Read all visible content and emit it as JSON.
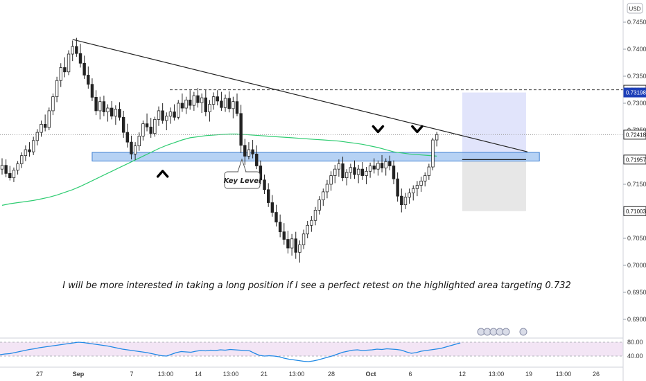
{
  "currency": "USD",
  "annotation_text": "I will be more interested in taking a long position if I see a perfect retest on the highlighted area targeting 0.732",
  "key_level_label": "Key Level",
  "colors": {
    "candle": "#222222",
    "ma": "#2ecc71",
    "zone_fill": "#9ec3f0",
    "zone_stroke": "#3d7fd1",
    "trendline": "#222222",
    "target_zone": "#dfe3fb",
    "stop_zone": "#e6e6e6",
    "rsi_line": "#1e88e5",
    "rsi_band": "#f3e5f5",
    "price_tag_blue": "#1d3fb8"
  },
  "chart_data": {
    "type": "candlestick",
    "title": "",
    "price_axis": {
      "ticks": [
        "0.74500",
        "0.74000",
        "0.73500",
        "0.73000",
        "0.72500",
        "0.72000",
        "0.71500",
        "0.71000",
        "0.70500",
        "0.70000",
        "0.69500",
        "0.69000"
      ],
      "range": [
        0.6875,
        0.7475
      ],
      "price_tags": [
        {
          "label": "0.73249",
          "value": 0.73249,
          "style": "outline"
        },
        {
          "label": "0.73198",
          "value": 0.73198,
          "style": "blue"
        },
        {
          "label": "0.72418",
          "value": 0.72418,
          "style": "outline"
        },
        {
          "label": "0.71957",
          "value": 0.71957,
          "style": "outline"
        },
        {
          "label": "0.71003",
          "value": 0.71003,
          "style": "outline"
        }
      ]
    },
    "time_axis": {
      "labels": [
        "27",
        "Sep",
        "7",
        "13:00",
        "14",
        "13:00",
        "21",
        "13:00",
        "28",
        "Oct",
        "6",
        "12",
        "13:00",
        "19",
        "13:00",
        "26"
      ]
    },
    "candles_ohlc": [
      [
        0.7178,
        0.7198,
        0.7168,
        0.7185
      ],
      [
        0.7185,
        0.7196,
        0.7163,
        0.717
      ],
      [
        0.717,
        0.7184,
        0.7157,
        0.7162
      ],
      [
        0.7162,
        0.7181,
        0.7154,
        0.7176
      ],
      [
        0.7176,
        0.7193,
        0.7168,
        0.7188
      ],
      [
        0.7188,
        0.7209,
        0.718,
        0.7203
      ],
      [
        0.7203,
        0.7222,
        0.7193,
        0.7214
      ],
      [
        0.7214,
        0.7228,
        0.7201,
        0.721
      ],
      [
        0.721,
        0.7238,
        0.7204,
        0.7231
      ],
      [
        0.7231,
        0.7252,
        0.7222,
        0.7246
      ],
      [
        0.7246,
        0.7268,
        0.7238,
        0.7261
      ],
      [
        0.7261,
        0.7279,
        0.7248,
        0.7255
      ],
      [
        0.7255,
        0.7292,
        0.725,
        0.7286
      ],
      [
        0.7286,
        0.7318,
        0.7278,
        0.7312
      ],
      [
        0.7312,
        0.7349,
        0.7302,
        0.7342
      ],
      [
        0.7342,
        0.7374,
        0.733,
        0.7366
      ],
      [
        0.7366,
        0.7385,
        0.7348,
        0.7358
      ],
      [
        0.7358,
        0.7398,
        0.7352,
        0.7391
      ],
      [
        0.7391,
        0.7416,
        0.7378,
        0.7405
      ],
      [
        0.7405,
        0.7421,
        0.7386,
        0.7392
      ],
      [
        0.7392,
        0.741,
        0.7366,
        0.7374
      ],
      [
        0.7374,
        0.7388,
        0.7345,
        0.7352
      ],
      [
        0.7352,
        0.7368,
        0.7327,
        0.7335
      ],
      [
        0.7335,
        0.7346,
        0.7304,
        0.7311
      ],
      [
        0.7311,
        0.7324,
        0.7278,
        0.7286
      ],
      [
        0.7286,
        0.7312,
        0.727,
        0.7303
      ],
      [
        0.7303,
        0.7314,
        0.7276,
        0.7284
      ],
      [
        0.7284,
        0.7298,
        0.7266,
        0.7291
      ],
      [
        0.7291,
        0.7304,
        0.727,
        0.7276
      ],
      [
        0.7276,
        0.7296,
        0.726,
        0.7289
      ],
      [
        0.7289,
        0.7302,
        0.7268,
        0.7274
      ],
      [
        0.7274,
        0.7286,
        0.7236,
        0.7246
      ],
      [
        0.7246,
        0.7262,
        0.7218,
        0.7228
      ],
      [
        0.7228,
        0.724,
        0.7196,
        0.7206
      ],
      [
        0.7206,
        0.7228,
        0.7195,
        0.7221
      ],
      [
        0.7221,
        0.7246,
        0.7212,
        0.7239
      ],
      [
        0.7239,
        0.7268,
        0.7231,
        0.7262
      ],
      [
        0.7262,
        0.7281,
        0.7248,
        0.7256
      ],
      [
        0.7256,
        0.7273,
        0.7236,
        0.7244
      ],
      [
        0.7244,
        0.7275,
        0.7238,
        0.727
      ],
      [
        0.727,
        0.7294,
        0.7258,
        0.7286
      ],
      [
        0.7286,
        0.73,
        0.7262,
        0.7268
      ],
      [
        0.7268,
        0.7283,
        0.725,
        0.7276
      ],
      [
        0.7276,
        0.7292,
        0.7262,
        0.7284
      ],
      [
        0.7284,
        0.7298,
        0.7268,
        0.7274
      ],
      [
        0.7274,
        0.7306,
        0.727,
        0.73
      ],
      [
        0.73,
        0.7318,
        0.7284,
        0.7291
      ],
      [
        0.7291,
        0.7312,
        0.728,
        0.7306
      ],
      [
        0.7306,
        0.7324,
        0.7288,
        0.7296
      ],
      [
        0.7296,
        0.7321,
        0.7286,
        0.7314
      ],
      [
        0.7314,
        0.7328,
        0.7292,
        0.7301
      ],
      [
        0.7301,
        0.7318,
        0.7282,
        0.731
      ],
      [
        0.731,
        0.7325,
        0.7276,
        0.7284
      ],
      [
        0.7284,
        0.7306,
        0.7266,
        0.7298
      ],
      [
        0.7298,
        0.732,
        0.7288,
        0.7312
      ],
      [
        0.7312,
        0.7324,
        0.7296,
        0.7304
      ],
      [
        0.7304,
        0.7321,
        0.7286,
        0.7292
      ],
      [
        0.7292,
        0.7316,
        0.7284,
        0.7309
      ],
      [
        0.7309,
        0.7322,
        0.7283,
        0.729
      ],
      [
        0.729,
        0.7312,
        0.7272,
        0.7303
      ],
      [
        0.7303,
        0.7318,
        0.7276,
        0.7281
      ],
      [
        0.7281,
        0.7297,
        0.7208,
        0.7222
      ],
      [
        0.7222,
        0.7234,
        0.7186,
        0.7202
      ],
      [
        0.7202,
        0.7228,
        0.7196,
        0.7214
      ],
      [
        0.7214,
        0.7232,
        0.7198,
        0.7206
      ],
      [
        0.7206,
        0.7222,
        0.7178,
        0.7184
      ],
      [
        0.7184,
        0.7194,
        0.715,
        0.7158
      ],
      [
        0.7158,
        0.7168,
        0.7132,
        0.714
      ],
      [
        0.714,
        0.7152,
        0.7108,
        0.7116
      ],
      [
        0.7116,
        0.713,
        0.709,
        0.7098
      ],
      [
        0.7098,
        0.7112,
        0.7072,
        0.708
      ],
      [
        0.708,
        0.7094,
        0.7052,
        0.7062
      ],
      [
        0.7062,
        0.7078,
        0.7038,
        0.7048
      ],
      [
        0.7048,
        0.7064,
        0.7022,
        0.7032
      ],
      [
        0.7032,
        0.7058,
        0.7018,
        0.7049
      ],
      [
        0.7049,
        0.7062,
        0.7012,
        0.7024
      ],
      [
        0.7024,
        0.7046,
        0.7005,
        0.7038
      ],
      [
        0.7038,
        0.7066,
        0.703,
        0.7058
      ],
      [
        0.7058,
        0.7082,
        0.705,
        0.7074
      ],
      [
        0.7074,
        0.7091,
        0.7062,
        0.7083
      ],
      [
        0.7083,
        0.7108,
        0.7074,
        0.7102
      ],
      [
        0.7102,
        0.7128,
        0.7094,
        0.7121
      ],
      [
        0.7121,
        0.7142,
        0.711,
        0.7136
      ],
      [
        0.7136,
        0.7158,
        0.7124,
        0.715
      ],
      [
        0.715,
        0.7174,
        0.7138,
        0.7166
      ],
      [
        0.7166,
        0.7186,
        0.7152,
        0.7178
      ],
      [
        0.7178,
        0.7196,
        0.7164,
        0.7188
      ],
      [
        0.7188,
        0.7201,
        0.7156,
        0.7162
      ],
      [
        0.7162,
        0.7178,
        0.7148,
        0.7172
      ],
      [
        0.7172,
        0.7188,
        0.716,
        0.7181
      ],
      [
        0.7181,
        0.7194,
        0.716,
        0.7168
      ],
      [
        0.7168,
        0.7186,
        0.7152,
        0.7178
      ],
      [
        0.7178,
        0.7191,
        0.7158,
        0.7166
      ],
      [
        0.7166,
        0.7182,
        0.715,
        0.7174
      ],
      [
        0.7174,
        0.719,
        0.7162,
        0.7184
      ],
      [
        0.7184,
        0.7198,
        0.717,
        0.7178
      ],
      [
        0.7178,
        0.7194,
        0.7166,
        0.7189
      ],
      [
        0.7189,
        0.7204,
        0.7172,
        0.718
      ],
      [
        0.718,
        0.7198,
        0.7166,
        0.7192
      ],
      [
        0.7192,
        0.7203,
        0.7176,
        0.7184
      ],
      [
        0.7184,
        0.7194,
        0.715,
        0.716
      ],
      [
        0.716,
        0.7172,
        0.7118,
        0.7128
      ],
      [
        0.7128,
        0.7142,
        0.7098,
        0.7112
      ],
      [
        0.7112,
        0.7134,
        0.7104,
        0.7126
      ],
      [
        0.7126,
        0.7142,
        0.7114,
        0.7134
      ],
      [
        0.7134,
        0.7148,
        0.712,
        0.7142
      ],
      [
        0.7142,
        0.7156,
        0.7128,
        0.7148
      ],
      [
        0.7148,
        0.7164,
        0.7136,
        0.7156
      ],
      [
        0.7156,
        0.7172,
        0.7146,
        0.7166
      ],
      [
        0.7166,
        0.7188,
        0.7158,
        0.7182
      ],
      [
        0.7182,
        0.7236,
        0.7176,
        0.7232
      ],
      [
        0.7232,
        0.7247,
        0.722,
        0.7242
      ]
    ],
    "moving_average": [
      0.7111,
      0.7114,
      0.7116,
      0.7118,
      0.712,
      0.7123,
      0.7126,
      0.713,
      0.7135,
      0.714,
      0.7146,
      0.7153,
      0.716,
      0.7167,
      0.7174,
      0.7181,
      0.7188,
      0.7195,
      0.7202,
      0.7209,
      0.7216,
      0.7222,
      0.7227,
      0.7232,
      0.7236,
      0.7238,
      0.724,
      0.7241,
      0.7242,
      0.7243,
      0.7243,
      0.7242,
      0.7241,
      0.724,
      0.7239,
      0.7238,
      0.7237,
      0.7236,
      0.7235,
      0.7234,
      0.7233,
      0.7232,
      0.7231,
      0.723,
      0.7228,
      0.7226,
      0.7224,
      0.7221,
      0.7218,
      0.7214,
      0.721,
      0.7206,
      0.7202
    ],
    "moving_average_bars": [
      0,
      2,
      4,
      6,
      8,
      10,
      12,
      14,
      16,
      18,
      20,
      22,
      24,
      26,
      28,
      30,
      32,
      34,
      36,
      38,
      40,
      42,
      44,
      46,
      48,
      50,
      52,
      54,
      56,
      58,
      60,
      62,
      64,
      66,
      68,
      70,
      72,
      74,
      76,
      78,
      80,
      82,
      84,
      86,
      88,
      90,
      92,
      94,
      96,
      98,
      100,
      104,
      111
    ],
    "support_zone": {
      "from": 0.7193,
      "to": 0.7209,
      "label": "Key Level"
    },
    "trendline": {
      "start": {
        "bar": 18,
        "value": 0.7418
      },
      "end": {
        "bar": 120,
        "value": 0.721
      }
    },
    "resistance_dashed": 0.73249,
    "last_price_dotted": 0.72418,
    "position": {
      "entry": 0.71957,
      "target": 0.73198,
      "stop": 0.71003
    },
    "pivot_markers": [
      {
        "bar": 41,
        "direction": "up"
      },
      {
        "bar": 96,
        "direction": "down"
      },
      {
        "bar": 106,
        "direction": "down"
      }
    ],
    "rsi": {
      "levels": [
        "80.00",
        "40.00"
      ],
      "values": [
        44,
        46,
        47,
        50,
        53,
        56,
        59,
        61,
        64,
        66,
        68,
        70,
        72,
        74,
        76,
        78,
        80,
        79,
        77,
        75,
        73,
        71,
        69,
        66,
        63,
        60,
        58,
        56,
        54,
        52,
        50,
        47,
        44,
        41,
        40,
        45,
        50,
        53,
        52,
        51,
        54,
        56,
        55,
        57,
        56,
        58,
        57,
        59,
        58,
        57,
        56,
        55,
        48,
        42,
        40,
        41,
        40,
        38,
        34,
        31,
        29,
        27,
        25,
        24,
        26,
        29,
        33,
        37,
        41,
        46,
        51,
        54,
        57,
        58,
        56,
        57,
        58,
        60,
        59,
        61,
        60,
        59,
        57,
        52,
        48,
        50,
        54,
        56,
        58,
        60,
        62,
        66,
        70,
        74,
        78
      ]
    }
  }
}
